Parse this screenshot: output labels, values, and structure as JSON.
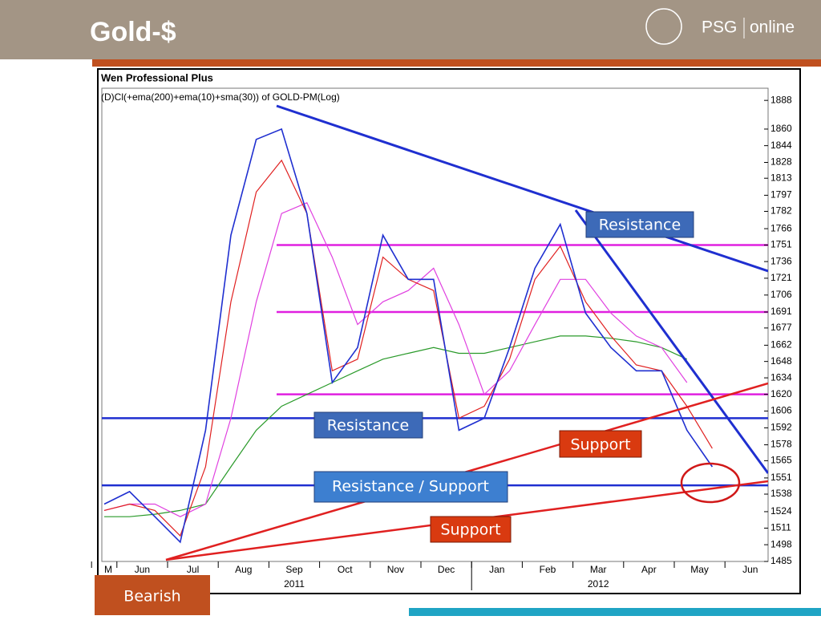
{
  "header": {
    "title": "Gold-$",
    "logo": "PSG",
    "logo_suffix": "online"
  },
  "chart_data": {
    "type": "line",
    "title": "Wen Professional Plus",
    "subtitle": "(D)Cl(+ema(200)+ema(10)+sma(30)) of GOLD-PM(Log)",
    "categories": [
      "M",
      "Jun",
      null,
      "Jul",
      null,
      "Aug",
      null,
      "Sep",
      null,
      "Oct",
      null,
      "Nov",
      null,
      "Dec",
      null,
      "Jan",
      null,
      "Feb",
      null,
      "Mar",
      null,
      "Apr",
      null,
      "May",
      null,
      "Jun"
    ],
    "x_groups": [
      "2011",
      "2012"
    ],
    "log_scale": true,
    "ylim": [
      1485,
      1900
    ],
    "yticks": [
      1485,
      1498,
      1511,
      1524,
      1538,
      1551,
      1565,
      1578,
      1592,
      1606,
      1620,
      1634,
      1648,
      1662,
      1677,
      1691,
      1706,
      1721,
      1736,
      1751,
      1766,
      1782,
      1797,
      1813,
      1828,
      1844,
      1860,
      1888
    ],
    "series": [
      {
        "name": "GOLD-PM",
        "color": "#1f2fd0",
        "values": [
          1530,
          1540,
          1520,
          1500,
          1590,
          1760,
          1850,
          1860,
          1780,
          1630,
          1660,
          1760,
          1720,
          1720,
          1590,
          1600,
          1660,
          1730,
          1770,
          1690,
          1660,
          1640,
          1640,
          1590,
          1560,
          null
        ]
      },
      {
        "name": "ema(10)",
        "color": "#e02020",
        "values": [
          1525,
          1530,
          1525,
          1505,
          1560,
          1700,
          1800,
          1830,
          1780,
          1640,
          1650,
          1740,
          1720,
          1710,
          1600,
          1610,
          1650,
          1720,
          1750,
          1700,
          1670,
          1645,
          1640,
          1610,
          1575,
          null
        ]
      },
      {
        "name": "sma(30)",
        "color": "#e040e0",
        "values": [
          1525,
          1530,
          1530,
          1520,
          1530,
          1600,
          1700,
          1780,
          1790,
          1740,
          1680,
          1700,
          1710,
          1730,
          1680,
          1620,
          1640,
          1680,
          1720,
          1720,
          1690,
          1670,
          1660,
          1630,
          null,
          null
        ]
      },
      {
        "name": "ema(200)",
        "color": "#2a9a2a",
        "values": [
          1520,
          1520,
          1522,
          1525,
          1530,
          1560,
          1590,
          1610,
          1620,
          1630,
          1640,
          1650,
          1655,
          1660,
          1655,
          1655,
          1660,
          1665,
          1670,
          1670,
          1668,
          1665,
          1660,
          1650,
          null,
          null
        ]
      }
    ],
    "levels": [
      {
        "value": 1751,
        "color": "#e020e0"
      },
      {
        "value": 1691,
        "color": "#e020e0"
      },
      {
        "value": 1620,
        "color": "#e020e0"
      },
      {
        "value": 1600,
        "color": "#1f2fd0"
      },
      {
        "value": 1545,
        "color": "#1f2fd0"
      }
    ],
    "annotations": [
      "Resistance",
      "Resistance",
      "Resistance / Support",
      "Support",
      "Support",
      "Bearish"
    ]
  }
}
